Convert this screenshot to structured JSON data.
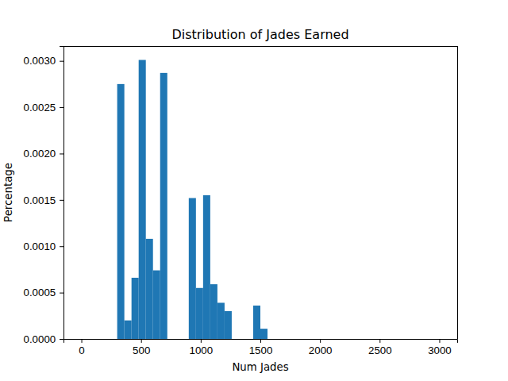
{
  "chart_data": {
    "type": "histogram",
    "title": "Distribution of Jades Earned",
    "x_label": "Num Jades",
    "y_label": "Percentage",
    "bins": [
      0,
      60,
      120,
      180,
      240,
      300,
      360,
      420,
      480,
      540,
      600,
      660,
      720,
      780,
      840,
      900,
      960,
      1020,
      1080,
      1140,
      1200,
      1260,
      1320,
      1380,
      1440,
      1500,
      1560,
      1620,
      1680,
      1740,
      1800,
      1860,
      1920,
      1980,
      2040,
      2100,
      2160,
      2220,
      2280,
      2340,
      2400,
      2460,
      2520,
      2580,
      2640,
      2700,
      2760,
      2820,
      2880,
      2940,
      3000
    ],
    "values": [
      0,
      0,
      0,
      0,
      0,
      0.00275,
      0.0002,
      0.00066,
      0.00301,
      0.00108,
      0.00074,
      0.00287,
      0,
      0,
      0,
      0.00152,
      0.00055,
      0.00155,
      0.00059,
      0.00039,
      0.0003,
      0,
      0,
      0,
      0.00036,
      0.00011,
      0,
      0,
      0,
      0,
      0,
      0,
      0,
      0,
      0,
      0,
      0,
      0,
      0,
      0,
      0,
      0,
      0,
      0,
      0,
      0,
      0,
      0,
      0,
      0
    ],
    "color": "#1f77b4",
    "xlim": [
      -150,
      3150
    ],
    "xticks": [
      0,
      500,
      1000,
      1500,
      2000,
      2500,
      3000
    ],
    "ylim": [
      0,
      0.00316
    ],
    "yticks": [
      {
        "value": 0,
        "label": "0.0000"
      },
      {
        "value": 0.0005,
        "label": "0.0005"
      },
      {
        "value": 0.001,
        "label": "0.0010"
      },
      {
        "value": 0.0015,
        "label": "0.0015"
      },
      {
        "value": 0.002,
        "label": "0.0020"
      },
      {
        "value": 0.0025,
        "label": "0.0025"
      },
      {
        "value": 0.003,
        "label": "0.0030"
      }
    ],
    "grid": false
  }
}
